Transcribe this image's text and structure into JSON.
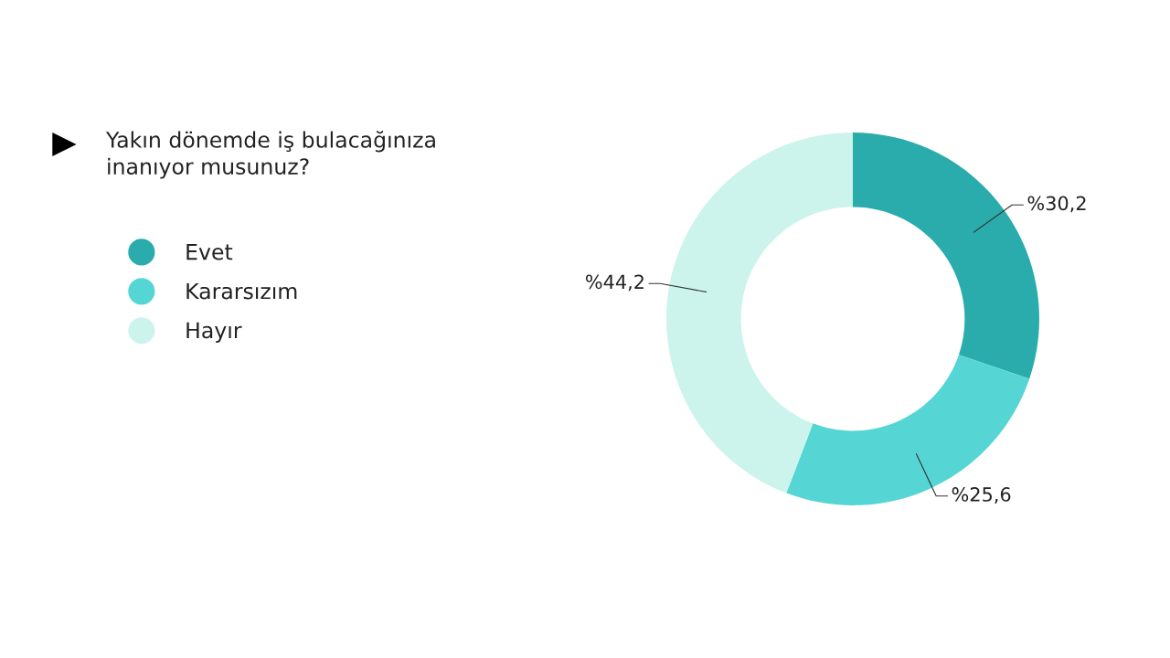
{
  "chart_data": {
    "type": "donut",
    "title": "Yakın dönemde iş bulacağınıza\ninanıyor musunuz?",
    "categories": [
      "Evet",
      "Kararsızım",
      "Hayır"
    ],
    "values": [
      30.2,
      25.6,
      44.2
    ],
    "colors": [
      "#2aacac",
      "#55d6d4",
      "#ccf4ec"
    ],
    "value_labels": [
      "%30,2",
      "%25,6",
      "%44,2"
    ],
    "legend": "left"
  }
}
